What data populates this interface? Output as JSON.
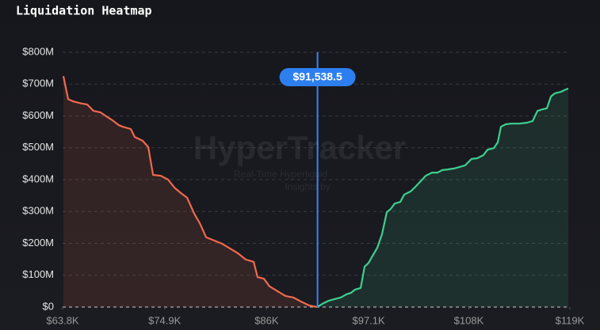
{
  "chart_data": {
    "type": "line",
    "title": "Liquidation Heatmap",
    "watermark": [
      "HyperTracker",
      "Real-Time Hyperliquid",
      "Insights by"
    ],
    "current_price": {
      "value": 91538.5,
      "label": "$91,538.5"
    },
    "xlim": [
      63800,
      119000
    ],
    "ylim": [
      0,
      800000000
    ],
    "xticks": [
      {
        "value": 63800,
        "label": "$63.8K"
      },
      {
        "value": 74900,
        "label": "$74.9K"
      },
      {
        "value": 86000,
        "label": "$86K"
      },
      {
        "value": 97100,
        "label": "$97.1K"
      },
      {
        "value": 108000,
        "label": "$108K"
      },
      {
        "value": 119000,
        "label": "$119K"
      }
    ],
    "yticks": [
      {
        "value": 0,
        "label": "$0"
      },
      {
        "value": 100000000,
        "label": "$100M"
      },
      {
        "value": 200000000,
        "label": "$200M"
      },
      {
        "value": 300000000,
        "label": "$300M"
      },
      {
        "value": 400000000,
        "label": "$400M"
      },
      {
        "value": 500000000,
        "label": "$500M"
      },
      {
        "value": 600000000,
        "label": "$600M"
      },
      {
        "value": 700000000,
        "label": "$700M"
      },
      {
        "value": 800000000,
        "label": "$800M"
      }
    ],
    "grid": true,
    "series": [
      {
        "color": "#f0694e",
        "x": [
          63890,
          64400,
          64920,
          65870,
          66470,
          67160,
          67940,
          68540,
          69230,
          69920,
          70350,
          71220,
          71650,
          72510,
          73120,
          73640,
          74500,
          75280,
          75970,
          76660,
          77350,
          78130,
          78730,
          79420,
          80280,
          81140,
          82010,
          82870,
          83730,
          84590,
          85020,
          85710,
          86310,
          87180,
          88040,
          88900,
          89760,
          90630,
          91490
        ],
        "values": [
          725000000,
          653000000,
          646000000,
          639000000,
          636000000,
          616000000,
          611000000,
          599000000,
          586000000,
          571000000,
          566000000,
          559000000,
          534000000,
          522000000,
          502000000,
          415000000,
          412000000,
          400000000,
          375000000,
          358000000,
          343000000,
          293000000,
          263000000,
          219000000,
          209000000,
          199000000,
          184000000,
          169000000,
          149000000,
          142000000,
          94000000,
          89000000,
          65000000,
          50000000,
          35000000,
          30000000,
          17000000,
          5000000,
          0
        ]
      },
      {
        "color": "#3ecf8e",
        "x": [
          91490,
          92180,
          92780,
          93380,
          94070,
          94680,
          95200,
          95630,
          96230,
          96660,
          97100,
          97530,
          98040,
          98560,
          99080,
          99510,
          99940,
          100540,
          100970,
          101660,
          102100,
          102700,
          103300,
          103990,
          104600,
          105120,
          105720,
          106400,
          107010,
          107610,
          108300,
          108910,
          109600,
          110030,
          110720,
          111150,
          111500,
          112020,
          112620,
          113480,
          114350,
          114950,
          115470,
          116070,
          116500,
          116940,
          117370,
          118060,
          118400,
          118830
        ],
        "values": [
          0,
          12000000,
          20000000,
          25000000,
          30000000,
          40000000,
          45000000,
          55000000,
          60000000,
          127000000,
          139000000,
          161000000,
          186000000,
          229000000,
          298000000,
          308000000,
          325000000,
          330000000,
          353000000,
          363000000,
          375000000,
          393000000,
          412000000,
          422000000,
          422000000,
          430000000,
          432000000,
          435000000,
          440000000,
          445000000,
          465000000,
          467000000,
          477000000,
          494000000,
          499000000,
          517000000,
          566000000,
          574000000,
          576000000,
          576000000,
          579000000,
          584000000,
          616000000,
          621000000,
          624000000,
          661000000,
          671000000,
          676000000,
          681000000,
          686000000
        ]
      }
    ]
  }
}
